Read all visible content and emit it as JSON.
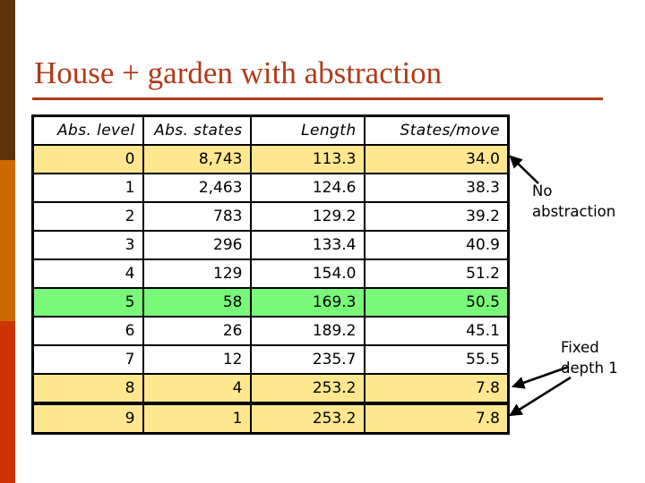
{
  "slide": {
    "title": "House + garden with abstraction"
  },
  "table": {
    "columns": [
      "Abs. level",
      "Abs. states",
      "Length",
      "States/move"
    ],
    "rows": [
      {
        "level": "0",
        "states": "8,743",
        "length": "113.3",
        "states_per_move": "34.0",
        "highlight": "yellow"
      },
      {
        "level": "1",
        "states": "2,463",
        "length": "124.6",
        "states_per_move": "38.3",
        "highlight": "none"
      },
      {
        "level": "2",
        "states": "783",
        "length": "129.2",
        "states_per_move": "39.2",
        "highlight": "none"
      },
      {
        "level": "3",
        "states": "296",
        "length": "133.4",
        "states_per_move": "40.9",
        "highlight": "none"
      },
      {
        "level": "4",
        "states": "129",
        "length": "154.0",
        "states_per_move": "51.2",
        "highlight": "none"
      },
      {
        "level": "5",
        "states": "58",
        "length": "169.3",
        "states_per_move": "50.5",
        "highlight": "green"
      },
      {
        "level": "6",
        "states": "26",
        "length": "189.2",
        "states_per_move": "45.1",
        "highlight": "none"
      },
      {
        "level": "7",
        "states": "12",
        "length": "235.7",
        "states_per_move": "55.5",
        "highlight": "none"
      },
      {
        "level": "8",
        "states": "4",
        "length": "253.2",
        "states_per_move": "7.8",
        "highlight": "yellow"
      },
      {
        "level": "9",
        "states": "1",
        "length": "253.2",
        "states_per_move": "7.8",
        "highlight": "yellow"
      }
    ]
  },
  "annotations": {
    "no_abstraction": "No abstraction",
    "fixed_depth": "Fixed depth 1"
  },
  "colors": {
    "title_red": "#B23A18",
    "highlight_yellow": "#FFE78F",
    "highlight_green": "#79F879",
    "bar_brown": "#5C3308",
    "bar_orange": "#CC6A00",
    "bar_red": "#CC3300",
    "arrow_black": "#000000"
  }
}
